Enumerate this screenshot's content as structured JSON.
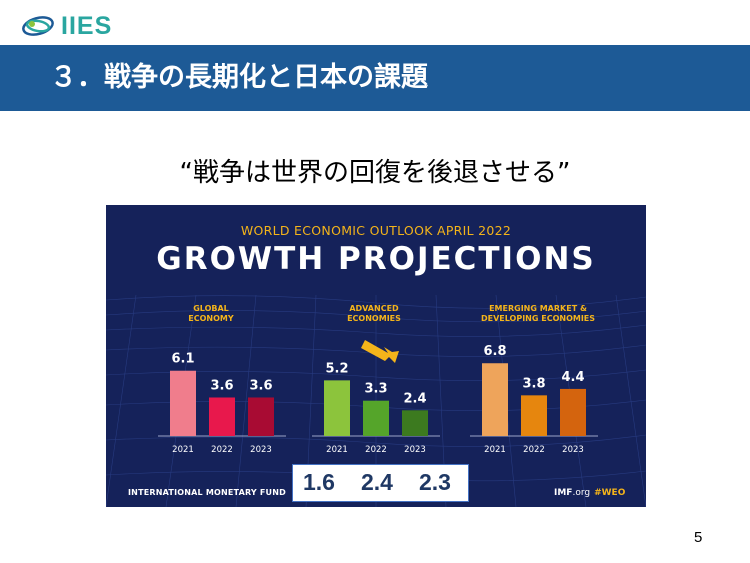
{
  "logo": {
    "text": "IIES",
    "icon": "globe-swirl-logo"
  },
  "header": {
    "title": "３．戦争の長期化と日本の課題"
  },
  "quote": "“戦争は世界の回復を後退させる”",
  "infographic": {
    "subtitle": "WORLD ECONOMIC OUTLOOK APRIL 2022",
    "title": "GROWTH PROJECTIONS",
    "footer_left": "INTERNATIONAL MONETARY FUND",
    "footer_imf": "IMF",
    "footer_org": ".org",
    "footer_tag": "#WEO"
  },
  "chart_data": {
    "type": "bar",
    "categories": [
      "2021",
      "2022",
      "2023"
    ],
    "groups": [
      {
        "name": "GLOBAL\nECONOMY",
        "values": [
          6.1,
          3.6,
          3.6
        ],
        "labels": [
          "6.1",
          "3.6",
          "3.6"
        ],
        "colors": [
          "#f07d8c",
          "#e8184c",
          "#a80b33"
        ]
      },
      {
        "name": "ADVANCED\nECONOMIES",
        "values": [
          5.2,
          3.3,
          2.4
        ],
        "labels": [
          "5.2",
          "3.3",
          "2.4"
        ],
        "colors": [
          "#8cc43c",
          "#55a52a",
          "#3c7a1f"
        ]
      },
      {
        "name": "EMERGING MARKET &\nDEVELOPING ECONOMIES",
        "values": [
          6.8,
          3.8,
          4.4
        ],
        "labels": [
          "6.8",
          "3.8",
          "4.4"
        ],
        "colors": [
          "#eea45b",
          "#e6860e",
          "#d4640e"
        ]
      }
    ],
    "ylim": [
      0,
      7.5
    ]
  },
  "overlay": {
    "values": [
      "1.6",
      "2.4",
      "2.3"
    ]
  },
  "page_number": "5"
}
